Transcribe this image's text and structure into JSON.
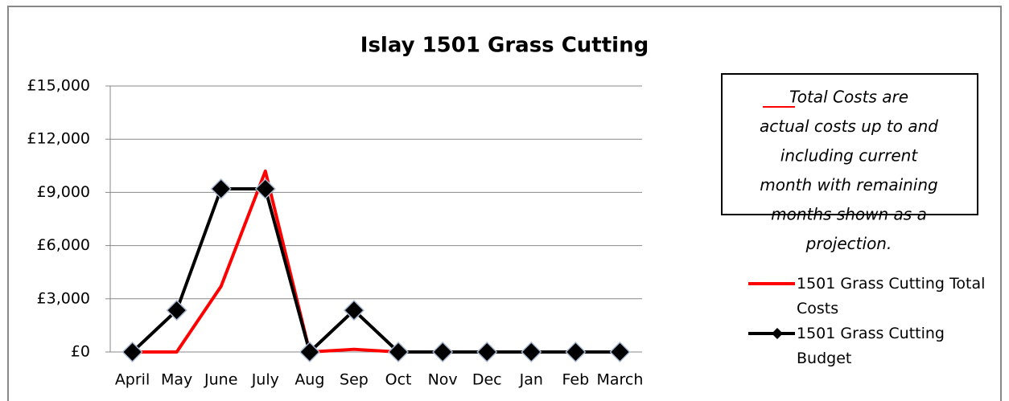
{
  "chart_data": {
    "type": "line",
    "title": "Islay 1501 Grass Cutting",
    "categories": [
      "April",
      "May",
      "June",
      "July",
      "Aug",
      "Sep",
      "Oct",
      "Nov",
      "Dec",
      "Jan",
      "Feb",
      "March"
    ],
    "series": [
      {
        "name": "1501 Grass Cutting Total Costs",
        "color": "#ff0000",
        "values": [
          0,
          0,
          3700,
          10200,
          0,
          150,
          0,
          null,
          null,
          null,
          null,
          null
        ]
      },
      {
        "name": "1501 Grass Cutting Budget",
        "color": "#000000",
        "marker": "diamond",
        "values": [
          0,
          2350,
          9200,
          9200,
          0,
          2350,
          0,
          0,
          0,
          0,
          0,
          0
        ]
      }
    ],
    "ylim": [
      0,
      15000
    ],
    "yticks": [
      {
        "value": 0,
        "label": "£0"
      },
      {
        "value": 3000,
        "label": "£3,000"
      },
      {
        "value": 6000,
        "label": "£6,000"
      },
      {
        "value": 9000,
        "label": "£9,000"
      },
      {
        "value": 12000,
        "label": "£12,000"
      },
      {
        "value": 15000,
        "label": "£15,000"
      }
    ],
    "grid": true,
    "legend": "right",
    "annotation": [
      "Total Costs are",
      "actual costs up to and",
      "including current",
      "month with remaining",
      "months shown as a",
      "projection."
    ]
  }
}
